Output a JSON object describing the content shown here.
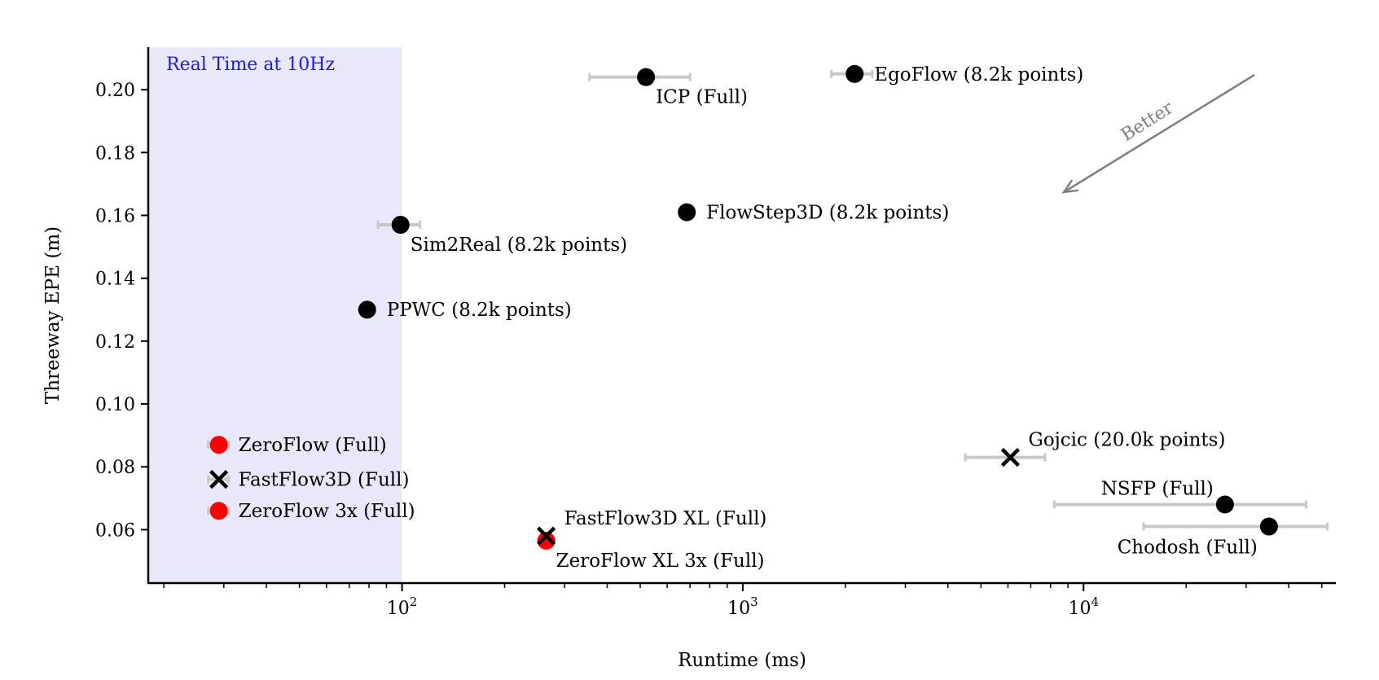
{
  "chart_data": {
    "type": "scatter",
    "xlabel": "Runtime (ms)",
    "ylabel": "Threeway EPE (m)",
    "xscale": "log",
    "xlim": [
      18,
      55000
    ],
    "ylim": [
      0.043,
      0.2135
    ],
    "xticks": [
      {
        "value": 100,
        "base": "10",
        "exp": "2"
      },
      {
        "value": 1000,
        "base": "10",
        "exp": "3"
      },
      {
        "value": 10000,
        "base": "10",
        "exp": "4"
      }
    ],
    "yticks": [
      {
        "value": 0.06,
        "label": "0.06"
      },
      {
        "value": 0.08,
        "label": "0.08"
      },
      {
        "value": 0.1,
        "label": "0.10"
      },
      {
        "value": 0.12,
        "label": "0.12"
      },
      {
        "value": 0.14,
        "label": "0.14"
      },
      {
        "value": 0.16,
        "label": "0.16"
      },
      {
        "value": 0.18,
        "label": "0.18"
      },
      {
        "value": 0.2,
        "label": "0.20"
      }
    ],
    "region": {
      "label": "Real Time at 10Hz",
      "x_max": 100,
      "fill": "#e8e8fa",
      "label_color": "#1a1aee"
    },
    "annotation": {
      "label": "Better",
      "color": "#808080"
    },
    "colors": {
      "black": "#000000",
      "red": "#ff0000",
      "errorbar": "#c8c8c8"
    },
    "points": [
      {
        "label": "ICP (Full)",
        "x": 520,
        "y": 0.204,
        "xerr": [
          355,
          700
        ],
        "marker": "circle",
        "color": "black",
        "label_pos": "below-right"
      },
      {
        "label": "EgoFlow (8.2k points)",
        "x": 2130,
        "y": 0.205,
        "xerr": [
          1820,
          2400
        ],
        "marker": "circle",
        "color": "black",
        "label_pos": "right"
      },
      {
        "label": "FlowStep3D (8.2k points)",
        "x": 685,
        "y": 0.161,
        "marker": "circle",
        "color": "black",
        "label_pos": "right"
      },
      {
        "label": "Sim2Real (8.2k points)",
        "x": 99,
        "y": 0.157,
        "xerr": [
          85,
          113
        ],
        "marker": "circle",
        "color": "black",
        "label_pos": "below-right"
      },
      {
        "label": "PPWC (8.2k points)",
        "x": 79,
        "y": 0.13,
        "marker": "circle",
        "color": "black",
        "label_pos": "right"
      },
      {
        "label": "ZeroFlow (Full)",
        "x": 29,
        "y": 0.087,
        "xerr": [
          27,
          31
        ],
        "marker": "circle",
        "color": "red",
        "label_pos": "right"
      },
      {
        "label": "FastFlow3D (Full)",
        "x": 29,
        "y": 0.076,
        "xerr": [
          27,
          31
        ],
        "marker": "x",
        "color": "black",
        "label_pos": "right"
      },
      {
        "label": "ZeroFlow 3x (Full)",
        "x": 29,
        "y": 0.066,
        "xerr": [
          27,
          31
        ],
        "marker": "circle",
        "color": "red",
        "label_pos": "right"
      },
      {
        "label": "ZeroFlow XL 3x (Full)",
        "x": 265,
        "y": 0.0565,
        "marker": "circle",
        "color": "red",
        "label_pos": "below-right"
      },
      {
        "label": "FastFlow3D XL (Full)",
        "x": 265,
        "y": 0.058,
        "marker": "x",
        "color": "black",
        "label_pos": "above-right"
      },
      {
        "label": "Gojcic (20.0k points)",
        "x": 6100,
        "y": 0.083,
        "xerr": [
          4500,
          7700
        ],
        "marker": "x",
        "color": "black",
        "label_pos": "above-right"
      },
      {
        "label": "NSFP (Full)",
        "x": 26000,
        "y": 0.068,
        "xerr": [
          8200,
          45000
        ],
        "marker": "circle",
        "color": "black",
        "label_pos": "above-left"
      },
      {
        "label": "Chodosh (Full)",
        "x": 35000,
        "y": 0.061,
        "xerr": [
          15000,
          52000
        ],
        "marker": "circle",
        "color": "black",
        "label_pos": "below-left"
      }
    ]
  }
}
